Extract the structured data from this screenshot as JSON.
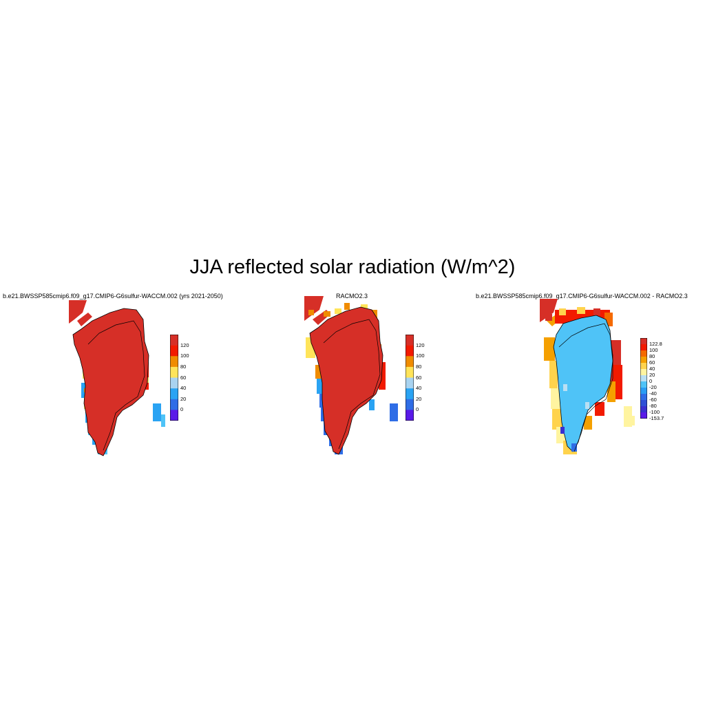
{
  "title": "JJA reflected solar radiation (W/m^2)",
  "panels": [
    {
      "id": "model",
      "subtitle": "b.e21.BWSSP585cmip6.f09_g17.CMIP6-G6sulfur-WACCM.002 (yrs 2021-2050)",
      "colorbar": {
        "labels": [
          "120",
          "100",
          "80",
          "60",
          "40",
          "20",
          "0"
        ],
        "colors": [
          "#d62f27",
          "#f21a00",
          "#f08c00",
          "#ffe45a",
          "#a9d3f0",
          "#2aa3f3",
          "#2f6de6",
          "#5a1ae8"
        ]
      }
    },
    {
      "id": "racmo",
      "subtitle": "RACMO2.3",
      "colorbar": {
        "labels": [
          "120",
          "100",
          "80",
          "60",
          "40",
          "20",
          "0"
        ],
        "colors": [
          "#d62f27",
          "#f21a00",
          "#f08c00",
          "#ffe45a",
          "#a9d3f0",
          "#2aa3f3",
          "#2f6de6",
          "#5a1ae8"
        ]
      }
    },
    {
      "id": "diff",
      "subtitle": "b.e21.BWSSP585cmip6.f09_g17.CMIP6-G6sulfur-WACCM.002 - RACMO2.3",
      "colorbar": {
        "labels": [
          "122.8",
          "100",
          "80",
          "60",
          "40",
          "20",
          "0",
          "-20",
          "-40",
          "-60",
          "-80",
          "-100",
          "-153.7"
        ],
        "colors": [
          "#d62f27",
          "#f21a00",
          "#f56a00",
          "#f5a000",
          "#ffd34d",
          "#fff4a0",
          "#b9dff3",
          "#4fc3f7",
          "#2a9df4",
          "#2f6de6",
          "#2e4fd6",
          "#3a2fd0",
          "#5a1ae8"
        ]
      }
    }
  ]
}
